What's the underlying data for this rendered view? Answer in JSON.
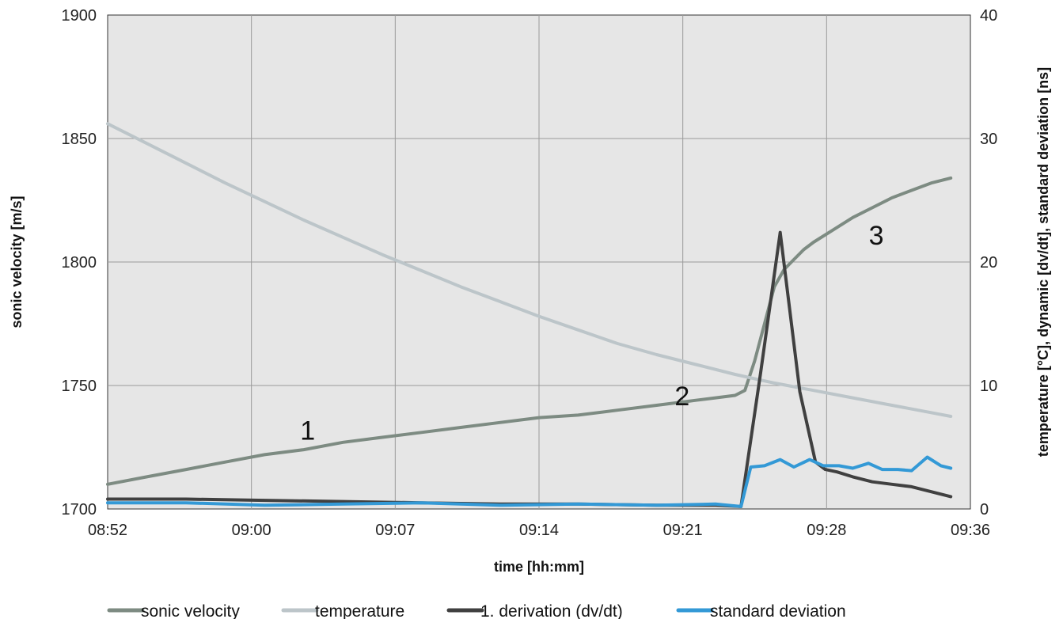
{
  "chart_data": {
    "type": "line",
    "xlabel": "time [hh:mm]",
    "ylabel": "sonic velocity [m/s]",
    "y2label": "temperature [°C], dynamic [dv/dt], standard deviation [ns]",
    "x_ticks": [
      "08:52",
      "09:00",
      "09:07",
      "09:14",
      "09:21",
      "09:28",
      "09:36"
    ],
    "xlim_minutes": [
      0,
      44
    ],
    "x_unit": "minutes after 08:52",
    "ylim": [
      1700,
      1900
    ],
    "y_ticks": [
      1700,
      1750,
      1800,
      1850,
      1900
    ],
    "y2lim": [
      0,
      40
    ],
    "y2_ticks": [
      0,
      10,
      20,
      30,
      40
    ],
    "grid": true,
    "legend_position": "bottom",
    "annotations": [
      {
        "text": "1",
        "x": 10.2,
        "y": 1728
      },
      {
        "text": "2",
        "x": 29.3,
        "y": 1742
      },
      {
        "text": "3",
        "x": 39.2,
        "y": 1807
      }
    ],
    "series": [
      {
        "name": "sonic velocity",
        "axis": "left",
        "color": "#7d8b82",
        "x": [
          0,
          2,
          4,
          6,
          8,
          10,
          12,
          14,
          16,
          18,
          20,
          22,
          24,
          26,
          28,
          30,
          31,
          32,
          32.5,
          33,
          33.5,
          34,
          34.5,
          35,
          35.5,
          36,
          37,
          38,
          39,
          40,
          41,
          42,
          43
        ],
        "y": [
          1710,
          1713,
          1716,
          1719,
          1722,
          1724,
          1727,
          1729,
          1731,
          1733,
          1735,
          1737,
          1738,
          1740,
          1742,
          1744,
          1745,
          1746,
          1748,
          1760,
          1775,
          1790,
          1797,
          1801,
          1805,
          1808,
          1813,
          1818,
          1822,
          1826,
          1829,
          1832,
          1834
        ]
      },
      {
        "name": "temperature",
        "axis": "right",
        "color": "#bcc5c9",
        "x": [
          0,
          2,
          4,
          6,
          8,
          10,
          12,
          14,
          16,
          18,
          20,
          22,
          24,
          26,
          28,
          30,
          32,
          34,
          36,
          38,
          40,
          42,
          43
        ],
        "y": [
          31.2,
          29.6,
          28.0,
          26.4,
          24.9,
          23.4,
          22.0,
          20.6,
          19.3,
          18.0,
          16.8,
          15.6,
          14.5,
          13.4,
          12.5,
          11.7,
          10.9,
          10.2,
          9.6,
          9.0,
          8.4,
          7.8,
          7.5
        ]
      },
      {
        "name": "1. derivation (dv/dt)",
        "axis": "right",
        "color": "#404040",
        "x": [
          0,
          4,
          8,
          12,
          16,
          20,
          24,
          28,
          31,
          32.3,
          33.3,
          34.3,
          35.3,
          36.1,
          36.6,
          37.2,
          38,
          39,
          40,
          41,
          42,
          43
        ],
        "y": [
          0.8,
          0.8,
          0.7,
          0.6,
          0.5,
          0.4,
          0.4,
          0.3,
          0.3,
          0.2,
          11,
          22.4,
          9.5,
          3.8,
          3.2,
          3.0,
          2.6,
          2.2,
          2.0,
          1.8,
          1.4,
          1.0
        ]
      },
      {
        "name": "standard deviation",
        "axis": "right",
        "color": "#3399d6",
        "x": [
          0,
          4,
          8,
          12,
          16,
          20,
          24,
          28,
          31,
          32.3,
          32.8,
          33.5,
          34.3,
          35,
          35.8,
          36.5,
          37.3,
          38,
          38.8,
          39.5,
          40.3,
          41,
          41.8,
          42.5,
          43
        ],
        "y": [
          0.5,
          0.5,
          0.3,
          0.4,
          0.5,
          0.3,
          0.4,
          0.3,
          0.4,
          0.2,
          3.4,
          3.5,
          4.0,
          3.4,
          4.0,
          3.5,
          3.5,
          3.3,
          3.7,
          3.2,
          3.2,
          3.1,
          4.2,
          3.5,
          3.3
        ]
      }
    ]
  }
}
